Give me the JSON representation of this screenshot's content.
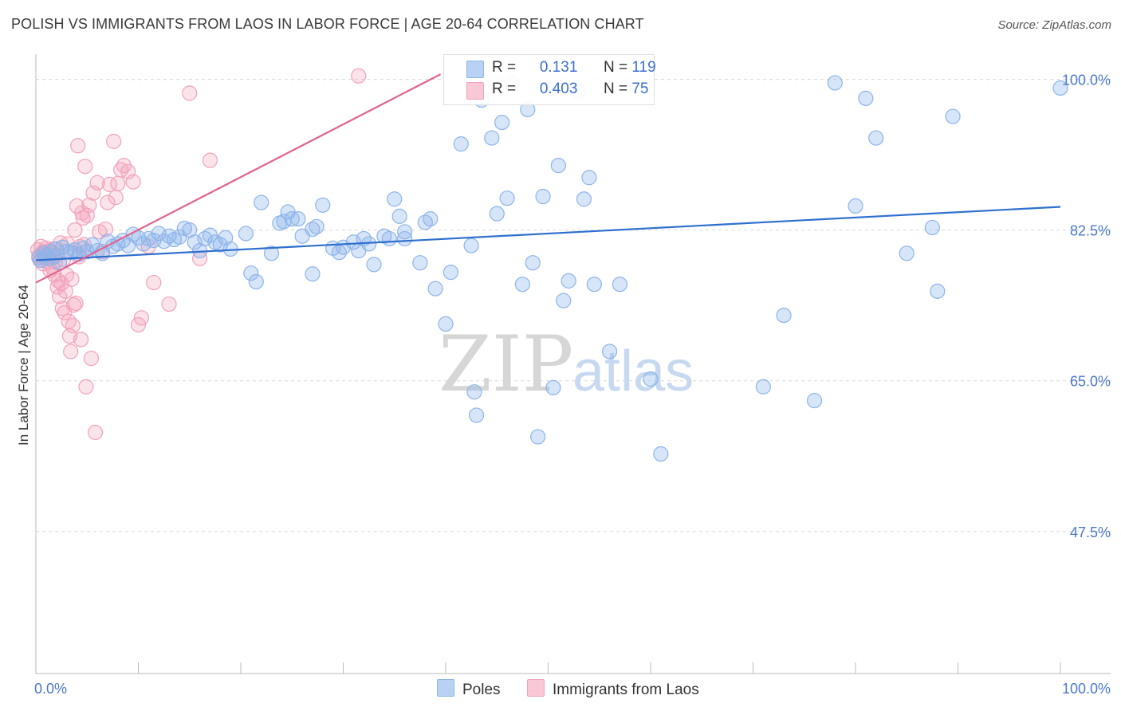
{
  "title": "POLISH VS IMMIGRANTS FROM LAOS IN LABOR FORCE | AGE 20-64 CORRELATION CHART",
  "source": "Source: ZipAtlas.com",
  "watermark": {
    "zip": "ZIP",
    "atlas": "atlas"
  },
  "legend": {
    "rows": [
      {
        "r_label": "R =",
        "r_value": "0.131",
        "n_label": "N =",
        "n_value": "119"
      },
      {
        "r_label": "R =",
        "r_value": "0.403",
        "n_label": "N =",
        "n_value": "75"
      }
    ]
  },
  "bottom_legend": [
    "Poles",
    "Immigrants from Laos"
  ],
  "colors": {
    "poles": "#8db4ea",
    "poles_line": "#2e6fcf",
    "laos": "#f2a2bb",
    "laos_line": "#e0628f",
    "axis_text": "#4a78c8",
    "grid": "#d9d9d9"
  },
  "chart_data": {
    "type": "scatter",
    "title": "POLISH VS IMMIGRANTS FROM LAOS IN LABOR FORCE | AGE 20-64 CORRELATION CHART",
    "xlabel": "",
    "ylabel": "In Labor Force | Age 20-64",
    "xlim": [
      0,
      100
    ],
    "ylim": [
      31,
      102
    ],
    "x_tick_labels": [
      "0.0%",
      "100.0%"
    ],
    "y_ticks": [
      47.5,
      65.0,
      82.5,
      100.0
    ],
    "y_tick_labels": [
      "47.5%",
      "65.0%",
      "82.5%",
      "100.0%"
    ],
    "grid": true,
    "legend_position": "top-center",
    "series": [
      {
        "name": "Poles",
        "R": 0.131,
        "N": 119,
        "trend": {
          "x": [
            0,
            100
          ],
          "y": [
            79.0,
            85.2
          ]
        },
        "points": [
          [
            0.3,
            79.3
          ],
          [
            0.5,
            79.0
          ],
          [
            0.8,
            79.8
          ],
          [
            1.0,
            79.6
          ],
          [
            1.2,
            79.2
          ],
          [
            1.5,
            80.0
          ],
          [
            1.8,
            79.4
          ],
          [
            2.0,
            80.3
          ],
          [
            2.3,
            78.7
          ],
          [
            2.6,
            80.5
          ],
          [
            3.0,
            80.0
          ],
          [
            3.4,
            79.9
          ],
          [
            3.8,
            80.2
          ],
          [
            4.2,
            79.7
          ],
          [
            4.6,
            80.4
          ],
          [
            5.0,
            80.0
          ],
          [
            5.5,
            80.8
          ],
          [
            6.0,
            80.1
          ],
          [
            6.5,
            79.8
          ],
          [
            7.0,
            81.2
          ],
          [
            7.5,
            80.6
          ],
          [
            8.0,
            80.9
          ],
          [
            8.5,
            81.3
          ],
          [
            9.0,
            80.7
          ],
          [
            9.5,
            82.0
          ],
          [
            10.0,
            81.6
          ],
          [
            10.5,
            80.9
          ],
          [
            11.0,
            81.5
          ],
          [
            11.5,
            81.3
          ],
          [
            12.0,
            82.1
          ],
          [
            12.5,
            81.2
          ],
          [
            13.0,
            81.8
          ],
          [
            13.5,
            81.4
          ],
          [
            14.0,
            81.7
          ],
          [
            14.5,
            82.7
          ],
          [
            15.0,
            82.5
          ],
          [
            15.5,
            81.1
          ],
          [
            16.0,
            80.1
          ],
          [
            16.5,
            81.5
          ],
          [
            17.0,
            81.9
          ],
          [
            17.5,
            81.1
          ],
          [
            18.0,
            80.8
          ],
          [
            18.5,
            81.6
          ],
          [
            19.0,
            80.3
          ],
          [
            20.5,
            82.1
          ],
          [
            21.0,
            77.5
          ],
          [
            21.5,
            76.5
          ],
          [
            22.0,
            85.7
          ],
          [
            23.0,
            79.8
          ],
          [
            23.8,
            83.3
          ],
          [
            24.2,
            83.5
          ],
          [
            24.6,
            84.6
          ],
          [
            25.0,
            83.8
          ],
          [
            25.6,
            83.8
          ],
          [
            26.0,
            81.8
          ],
          [
            27.0,
            82.6
          ],
          [
            27.4,
            82.9
          ],
          [
            27.0,
            77.4
          ],
          [
            28.0,
            85.4
          ],
          [
            29.0,
            80.4
          ],
          [
            29.6,
            79.9
          ],
          [
            30.0,
            80.5
          ],
          [
            31.0,
            81.1
          ],
          [
            31.5,
            80.1
          ],
          [
            32.0,
            81.5
          ],
          [
            32.5,
            80.9
          ],
          [
            33.0,
            78.5
          ],
          [
            34.0,
            81.8
          ],
          [
            34.5,
            81.5
          ],
          [
            35.5,
            84.1
          ],
          [
            35.0,
            86.1
          ],
          [
            36.0,
            82.3
          ],
          [
            36.0,
            81.5
          ],
          [
            38.0,
            83.4
          ],
          [
            38.5,
            83.8
          ],
          [
            37.5,
            78.7
          ],
          [
            39.0,
            75.7
          ],
          [
            40.0,
            71.6
          ],
          [
            40.5,
            77.6
          ],
          [
            41.5,
            92.5
          ],
          [
            42.5,
            80.7
          ],
          [
            42.8,
            63.7
          ],
          [
            43.0,
            61.0
          ],
          [
            43.5,
            97.6
          ],
          [
            44.5,
            93.2
          ],
          [
            45.0,
            84.4
          ],
          [
            45.5,
            95.0
          ],
          [
            46.0,
            86.2
          ],
          [
            46.5,
            99.5
          ],
          [
            47.5,
            76.2
          ],
          [
            48.0,
            96.5
          ],
          [
            48.5,
            78.7
          ],
          [
            49.0,
            58.5
          ],
          [
            49.5,
            86.4
          ],
          [
            50.0,
            98.9
          ],
          [
            50.5,
            64.2
          ],
          [
            51.0,
            90.0
          ],
          [
            51.5,
            74.3
          ],
          [
            52.0,
            76.6
          ],
          [
            53.0,
            98.6
          ],
          [
            53.5,
            86.1
          ],
          [
            54.0,
            88.6
          ],
          [
            54.5,
            76.2
          ],
          [
            56.0,
            68.4
          ],
          [
            57.0,
            76.2
          ],
          [
            60.0,
            65.2
          ],
          [
            61.0,
            56.5
          ],
          [
            71.0,
            64.3
          ],
          [
            73.0,
            72.6
          ],
          [
            76.0,
            62.7
          ],
          [
            78.0,
            99.6
          ],
          [
            80.0,
            85.3
          ],
          [
            81.0,
            97.8
          ],
          [
            82.0,
            93.2
          ],
          [
            85.0,
            79.8
          ],
          [
            87.5,
            82.8
          ],
          [
            88.0,
            75.4
          ],
          [
            89.5,
            95.7
          ],
          [
            100.0,
            99.0
          ]
        ]
      },
      {
        "name": "Immigrants from Laos",
        "R": 0.403,
        "N": 75,
        "trend": {
          "x": [
            0,
            39.5
          ],
          "y": [
            76.4,
            100.6
          ]
        },
        "points": [
          [
            0.2,
            80.2
          ],
          [
            0.3,
            79.5
          ],
          [
            0.4,
            79.0
          ],
          [
            0.5,
            80.6
          ],
          [
            0.6,
            79.8
          ],
          [
            0.7,
            78.6
          ],
          [
            0.8,
            80.0
          ],
          [
            0.9,
            79.3
          ],
          [
            1.0,
            80.4
          ],
          [
            1.1,
            78.9
          ],
          [
            1.2,
            79.7
          ],
          [
            1.3,
            80.1
          ],
          [
            1.4,
            77.8
          ],
          [
            1.5,
            79.2
          ],
          [
            1.6,
            78.2
          ],
          [
            1.7,
            80.3
          ],
          [
            1.8,
            77.3
          ],
          [
            1.9,
            78.8
          ],
          [
            2.0,
            79.6
          ],
          [
            2.1,
            75.9
          ],
          [
            2.2,
            76.6
          ],
          [
            2.3,
            74.8
          ],
          [
            2.4,
            81.0
          ],
          [
            2.5,
            76.3
          ],
          [
            2.6,
            73.4
          ],
          [
            2.7,
            79.1
          ],
          [
            2.8,
            72.9
          ],
          [
            2.9,
            75.4
          ],
          [
            3.0,
            77.3
          ],
          [
            3.1,
            80.9
          ],
          [
            3.2,
            71.9
          ],
          [
            3.3,
            70.2
          ],
          [
            3.4,
            68.4
          ],
          [
            3.5,
            76.8
          ],
          [
            3.6,
            71.4
          ],
          [
            3.7,
            73.8
          ],
          [
            3.8,
            82.5
          ],
          [
            3.9,
            74.0
          ],
          [
            4.0,
            85.3
          ],
          [
            4.1,
            92.3
          ],
          [
            4.2,
            79.4
          ],
          [
            4.3,
            80.6
          ],
          [
            4.4,
            69.8
          ],
          [
            4.5,
            84.5
          ],
          [
            4.6,
            83.9
          ],
          [
            4.7,
            80.8
          ],
          [
            4.8,
            89.9
          ],
          [
            4.9,
            64.3
          ],
          [
            5.0,
            84.2
          ],
          [
            5.2,
            85.4
          ],
          [
            5.4,
            67.6
          ],
          [
            5.6,
            86.8
          ],
          [
            5.8,
            59.0
          ],
          [
            6.0,
            88.0
          ],
          [
            6.2,
            82.3
          ],
          [
            6.5,
            80.0
          ],
          [
            6.8,
            82.6
          ],
          [
            7.0,
            85.7
          ],
          [
            7.2,
            87.8
          ],
          [
            7.6,
            92.8
          ],
          [
            7.8,
            86.3
          ],
          [
            8.0,
            87.9
          ],
          [
            8.3,
            89.5
          ],
          [
            8.6,
            90.0
          ],
          [
            9.0,
            89.3
          ],
          [
            9.5,
            88.1
          ],
          [
            10.0,
            71.5
          ],
          [
            10.3,
            72.3
          ],
          [
            11.0,
            80.6
          ],
          [
            11.5,
            76.4
          ],
          [
            13.0,
            73.9
          ],
          [
            15.0,
            98.4
          ],
          [
            16.0,
            79.2
          ],
          [
            17.0,
            90.6
          ],
          [
            31.5,
            100.4
          ]
        ]
      }
    ]
  }
}
